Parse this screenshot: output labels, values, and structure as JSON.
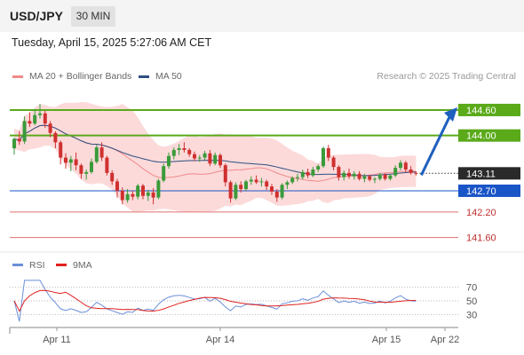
{
  "header": {
    "symbol": "USD/JPY",
    "timeframe": "30 MIN"
  },
  "datetime": "Tuesday, April 15, 2025 5:27:06 AM CET",
  "legend": {
    "ma20_label": "MA 20 + Bollinger Bands",
    "ma50_label": "MA 50",
    "rsi_label": "RSI",
    "ma9_label": "9MA",
    "copyright": "Research © 2025 Trading Central"
  },
  "colors": {
    "candle_up": "#3a9a3a",
    "candle_down": "#d03030",
    "bands": "#fbd3d3",
    "ma20": "#f08a8a",
    "ma50": "#2f4f7f",
    "resistance": "#5aaa1a",
    "support": "#e07070",
    "pivot": "#1a55c8",
    "rsi": "#6a8fd8",
    "rsi_ma": "#e02020"
  },
  "chart_data": [
    {
      "type": "candlestick",
      "title": "",
      "x_labels": [
        "Apr 11",
        "Apr 14",
        "Apr 15",
        "Apr 22"
      ],
      "ylim": [
        141.3,
        145.1
      ],
      "candles": [
        [
          143.7,
          143.95,
          143.55,
          143.92
        ],
        [
          143.92,
          144.1,
          143.78,
          143.86
        ],
        [
          143.86,
          144.45,
          143.8,
          144.34
        ],
        [
          144.34,
          144.55,
          144.2,
          144.28
        ],
        [
          144.28,
          144.62,
          144.24,
          144.48
        ],
        [
          144.48,
          144.74,
          144.4,
          144.52
        ],
        [
          144.52,
          144.58,
          144.18,
          144.28
        ],
        [
          144.28,
          144.34,
          143.96,
          144.06
        ],
        [
          144.06,
          144.1,
          143.7,
          143.84
        ],
        [
          143.84,
          143.88,
          143.32,
          143.48
        ],
        [
          143.48,
          143.58,
          143.22,
          143.36
        ],
        [
          143.36,
          143.52,
          143.16,
          143.44
        ],
        [
          143.44,
          143.6,
          143.18,
          143.3
        ],
        [
          143.3,
          143.34,
          142.98,
          143.1
        ],
        [
          143.1,
          143.2,
          142.96,
          143.14
        ],
        [
          143.14,
          143.46,
          143.1,
          143.38
        ],
        [
          143.38,
          143.78,
          143.34,
          143.72
        ],
        [
          143.72,
          143.84,
          143.4,
          143.48
        ],
        [
          143.48,
          143.52,
          143.06,
          143.12
        ],
        [
          143.12,
          143.18,
          142.84,
          142.92
        ],
        [
          142.92,
          142.98,
          142.54,
          142.7
        ],
        [
          142.7,
          142.78,
          142.38,
          142.48
        ],
        [
          142.48,
          142.74,
          142.42,
          142.62
        ],
        [
          142.62,
          142.7,
          142.48,
          142.56
        ],
        [
          142.56,
          142.86,
          142.5,
          142.82
        ],
        [
          142.82,
          142.86,
          142.5,
          142.58
        ],
        [
          142.58,
          142.72,
          142.46,
          142.66
        ],
        [
          142.66,
          142.76,
          142.38,
          142.54
        ],
        [
          142.54,
          142.98,
          142.5,
          142.94
        ],
        [
          142.94,
          143.34,
          142.9,
          143.28
        ],
        [
          143.28,
          143.6,
          143.22,
          143.52
        ],
        [
          143.52,
          143.72,
          143.44,
          143.66
        ],
        [
          143.66,
          143.8,
          143.54,
          143.7
        ],
        [
          143.7,
          143.84,
          143.6,
          143.66
        ],
        [
          143.66,
          143.7,
          143.5,
          143.56
        ],
        [
          143.56,
          143.62,
          143.4,
          143.46
        ],
        [
          143.46,
          143.54,
          143.38,
          143.48
        ],
        [
          143.48,
          143.64,
          143.42,
          143.58
        ],
        [
          143.58,
          143.66,
          143.28,
          143.34
        ],
        [
          143.34,
          143.6,
          143.3,
          143.54
        ],
        [
          143.54,
          143.58,
          143.24,
          143.3
        ],
        [
          143.3,
          143.34,
          142.8,
          142.9
        ],
        [
          142.9,
          142.94,
          142.42,
          142.52
        ],
        [
          142.52,
          142.9,
          142.48,
          142.84
        ],
        [
          142.84,
          142.92,
          142.66,
          142.74
        ],
        [
          142.74,
          142.96,
          142.7,
          142.92
        ],
        [
          142.92,
          143.04,
          142.84,
          142.96
        ],
        [
          142.96,
          143.06,
          142.86,
          142.9
        ],
        [
          142.9,
          143.0,
          142.8,
          142.92
        ],
        [
          142.92,
          142.96,
          142.72,
          142.8
        ],
        [
          142.8,
          142.86,
          142.6,
          142.68
        ],
        [
          142.68,
          142.74,
          142.44,
          142.54
        ],
        [
          142.54,
          142.88,
          142.5,
          142.84
        ],
        [
          142.84,
          142.94,
          142.74,
          142.9
        ],
        [
          142.9,
          143.04,
          142.86,
          143.0
        ],
        [
          143.0,
          143.1,
          142.92,
          143.02
        ],
        [
          143.02,
          143.2,
          142.96,
          143.14
        ],
        [
          143.14,
          143.22,
          143.0,
          143.06
        ],
        [
          143.06,
          143.26,
          143.02,
          143.2
        ],
        [
          143.2,
          143.32,
          143.14,
          143.28
        ],
        [
          143.28,
          143.74,
          143.24,
          143.7
        ],
        [
          143.7,
          143.78,
          143.4,
          143.48
        ],
        [
          143.48,
          143.52,
          143.18,
          143.26
        ],
        [
          143.26,
          143.3,
          142.94,
          143.02
        ],
        [
          143.02,
          143.18,
          142.94,
          143.12
        ],
        [
          143.12,
          143.22,
          142.98,
          143.04
        ],
        [
          143.04,
          143.16,
          142.96,
          143.1
        ],
        [
          143.1,
          143.16,
          142.94,
          142.98
        ],
        [
          142.98,
          143.1,
          142.9,
          143.04
        ],
        [
          143.04,
          143.08,
          142.92,
          142.96
        ],
        [
          142.96,
          143.02,
          142.88,
          142.98
        ],
        [
          142.98,
          143.12,
          142.94,
          143.08
        ],
        [
          143.08,
          143.12,
          142.94,
          142.98
        ],
        [
          142.98,
          143.1,
          142.94,
          143.06
        ],
        [
          143.06,
          143.3,
          143.02,
          143.24
        ],
        [
          143.24,
          143.42,
          143.18,
          143.36
        ],
        [
          143.36,
          143.4,
          143.14,
          143.2
        ],
        [
          143.2,
          143.28,
          143.08,
          143.12
        ],
        [
          143.12,
          143.16,
          143.06,
          143.1
        ]
      ],
      "levels": [
        {
          "label": "144.60",
          "value": 144.6,
          "kind": "resistance"
        },
        {
          "label": "144.00",
          "value": 144.0,
          "kind": "resistance"
        },
        {
          "label": "143.11",
          "value": 143.11,
          "kind": "last"
        },
        {
          "label": "142.70",
          "value": 142.7,
          "kind": "pivot"
        },
        {
          "label": "142.20",
          "value": 142.2,
          "kind": "support"
        },
        {
          "label": "141.60",
          "value": 141.6,
          "kind": "support"
        }
      ],
      "projection": {
        "from": 143.11,
        "to": 144.6
      }
    },
    {
      "type": "line",
      "title": "",
      "series_names": [
        "RSI",
        "9MA"
      ],
      "ylim": [
        15,
        85
      ],
      "ticks": [
        "70",
        "50",
        "30"
      ]
    }
  ]
}
